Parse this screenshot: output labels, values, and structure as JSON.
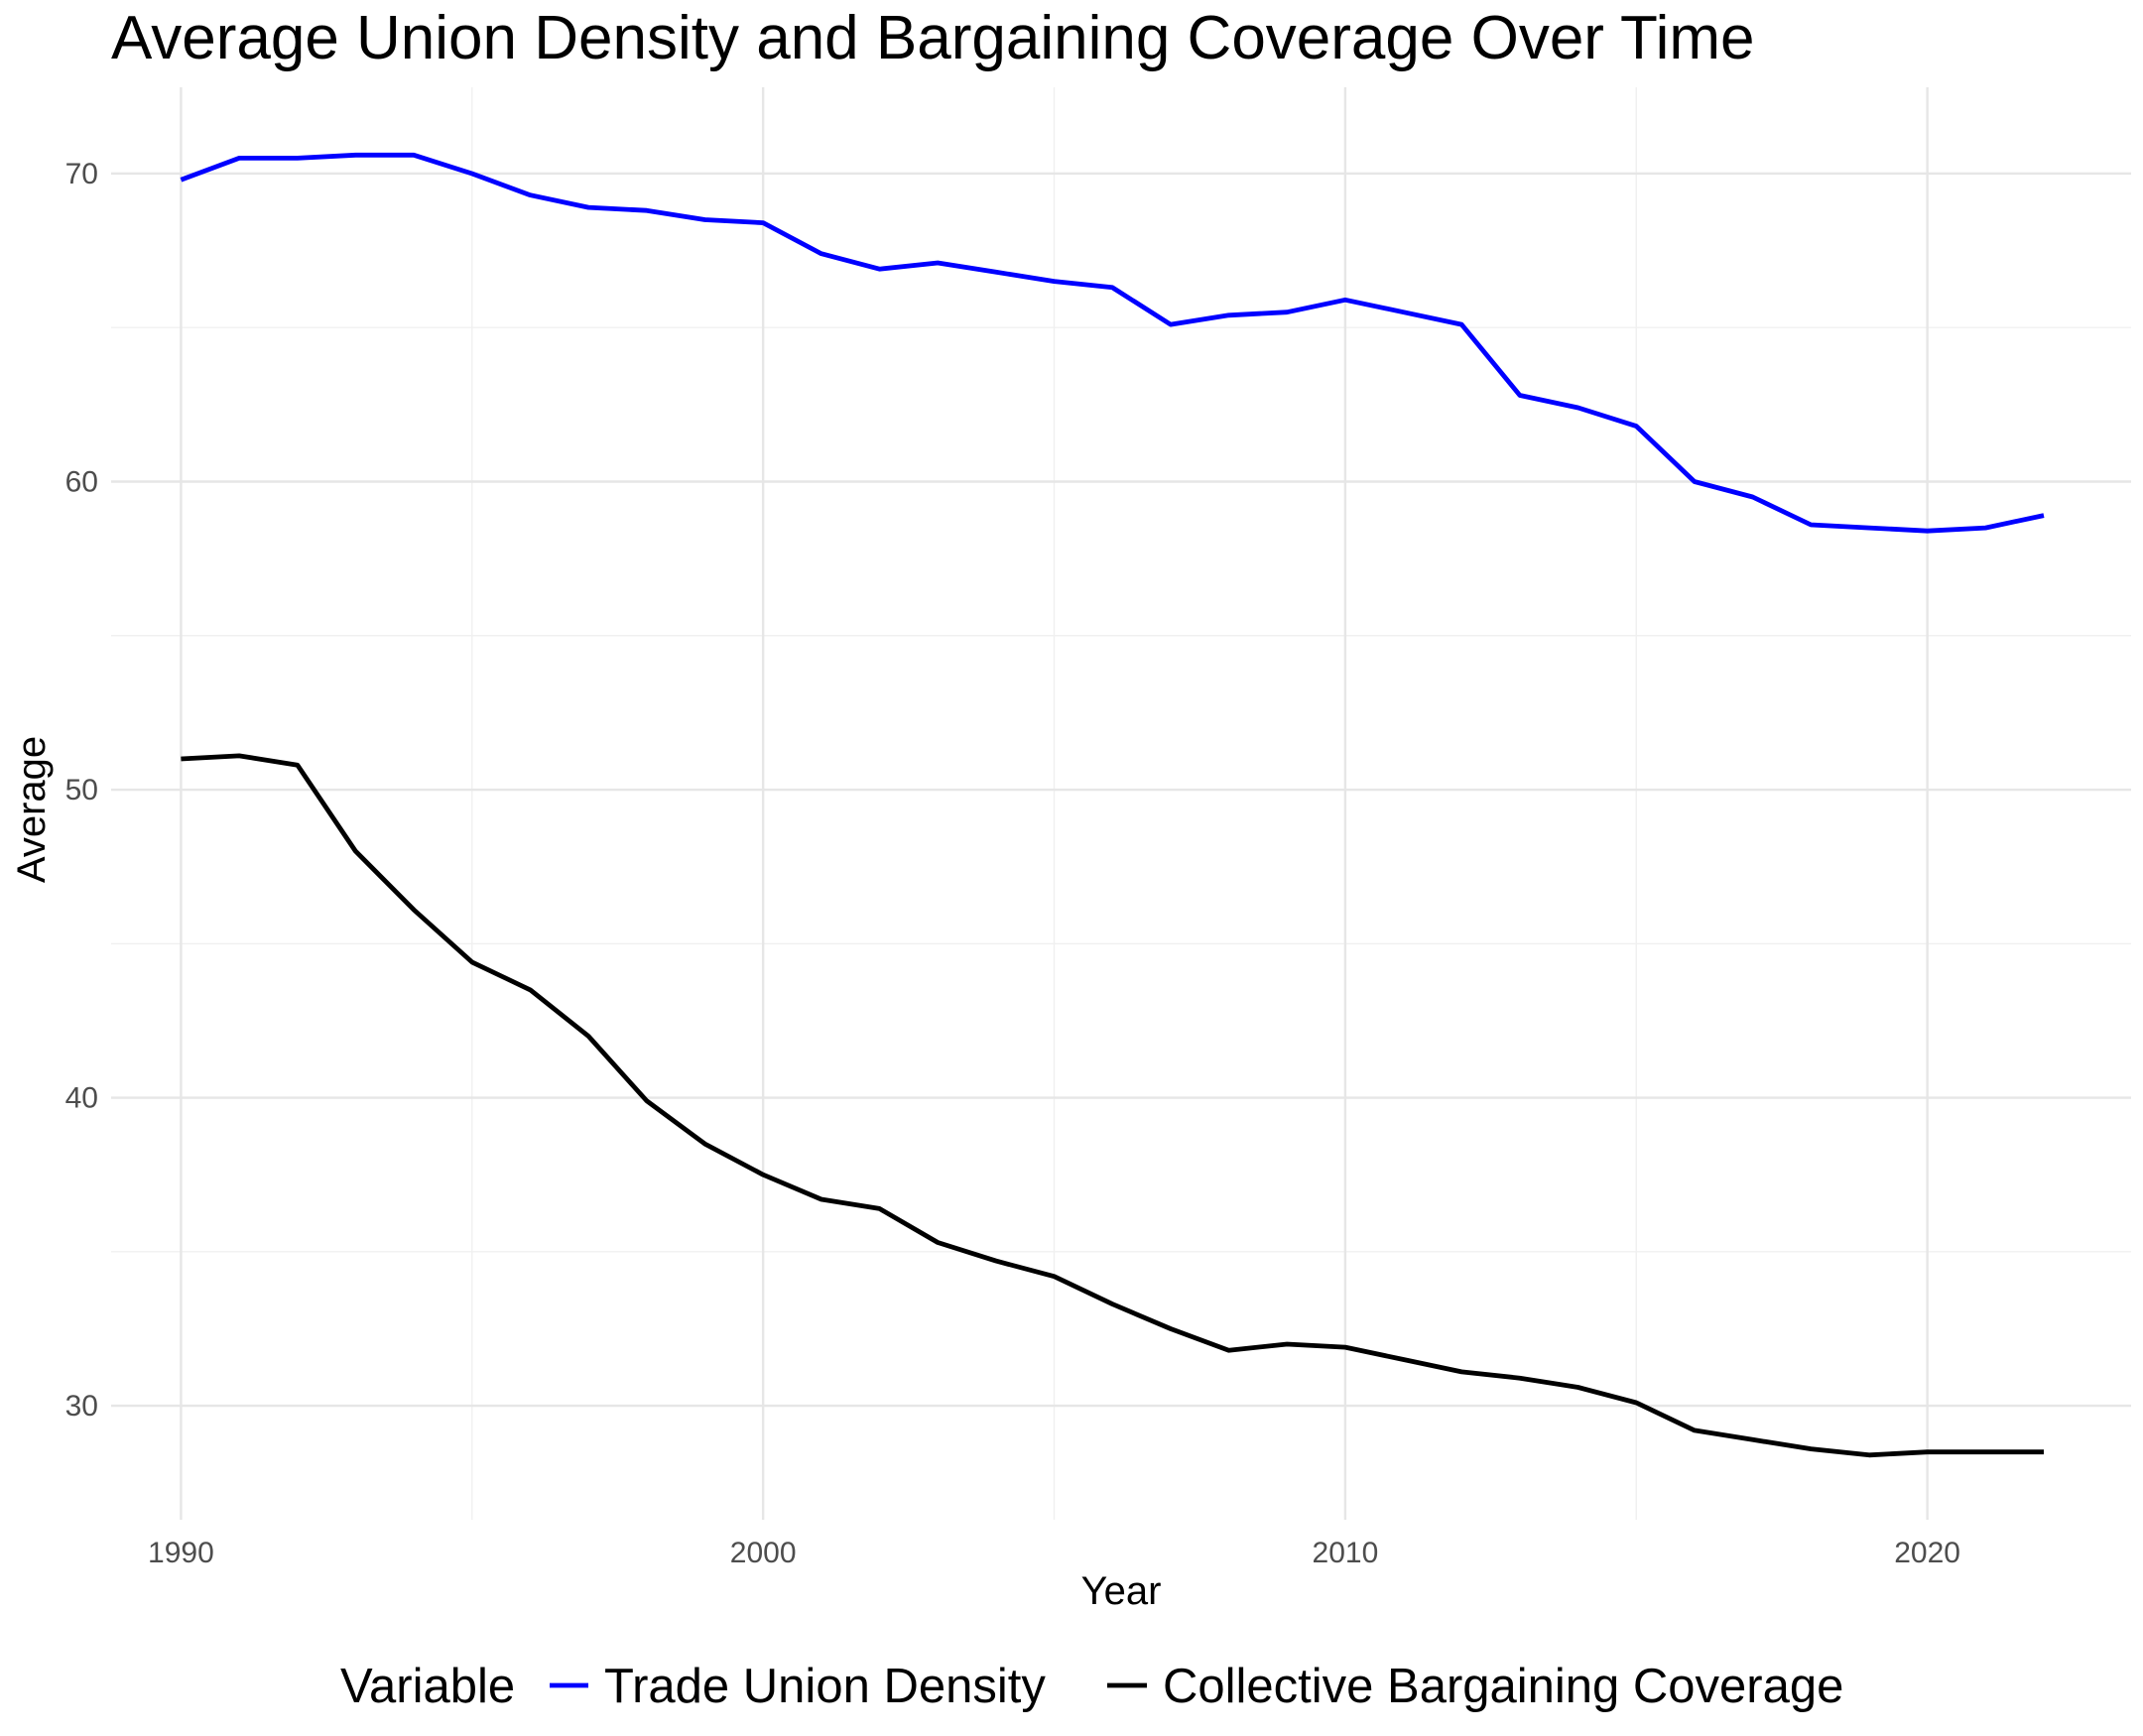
{
  "chart_data": {
    "type": "line",
    "title": "Average Union Density and Bargaining Coverage Over Time",
    "xlabel": "Year",
    "ylabel": "Average",
    "xlim": [
      1988.8,
      2023.5
    ],
    "ylim": [
      26.3,
      72.8
    ],
    "x_ticks": [
      1990,
      2000,
      2010,
      2020
    ],
    "y_ticks": [
      30,
      40,
      50,
      60,
      70
    ],
    "grid": true,
    "legend": {
      "position": "bottom",
      "title": "Variable"
    },
    "x": [
      1990,
      1991,
      1992,
      1993,
      1994,
      1995,
      1996,
      1997,
      1998,
      1999,
      2000,
      2001,
      2002,
      2003,
      2004,
      2005,
      2006,
      2007,
      2008,
      2009,
      2010,
      2011,
      2012,
      2013,
      2014,
      2015,
      2016,
      2017,
      2018,
      2019,
      2020,
      2021,
      2022
    ],
    "series": [
      {
        "name": "Trade Union Density",
        "color": "#0000ff",
        "values": [
          69.8,
          70.5,
          70.5,
          70.6,
          70.6,
          70.0,
          69.3,
          68.9,
          68.8,
          68.5,
          68.4,
          67.4,
          66.9,
          67.1,
          66.8,
          66.5,
          66.3,
          65.1,
          65.4,
          65.5,
          65.9,
          65.5,
          65.1,
          62.8,
          62.4,
          61.8,
          60.0,
          59.5,
          58.6,
          58.5,
          58.4,
          58.5,
          58.9
        ]
      },
      {
        "name": "Collective Bargaining Coverage",
        "color": "#000000",
        "values": [
          51.0,
          51.1,
          50.8,
          48.0,
          46.1,
          44.4,
          43.5,
          42.0,
          39.9,
          38.5,
          37.5,
          36.7,
          36.4,
          35.3,
          34.7,
          34.2,
          33.3,
          32.5,
          31.8,
          32.0,
          31.9,
          31.5,
          31.1,
          30.9,
          30.6,
          30.1,
          29.2,
          28.9,
          28.6,
          28.4,
          28.5,
          28.5,
          28.5
        ]
      }
    ]
  }
}
